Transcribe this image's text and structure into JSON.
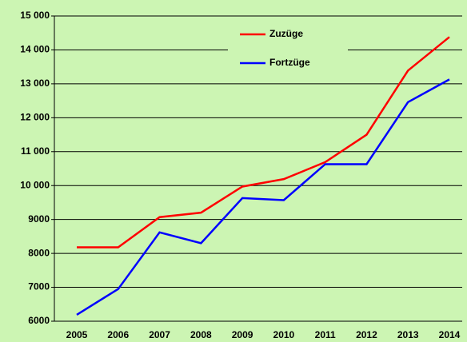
{
  "chart_data": {
    "type": "line",
    "x": [
      "2005",
      "2006",
      "2007",
      "2008",
      "2009",
      "2010",
      "2011",
      "2012",
      "2013",
      "2014"
    ],
    "series": [
      {
        "name": "Zuzüge",
        "color": "#ff0000",
        "values": [
          8180,
          8180,
          9070,
          9200,
          9970,
          10190,
          10690,
          11500,
          13390,
          14380
        ]
      },
      {
        "name": "Fortzüge",
        "color": "#0000ff",
        "values": [
          6190,
          6950,
          8620,
          8300,
          9630,
          9570,
          10630,
          10630,
          12460,
          13130
        ]
      }
    ],
    "ylim": [
      6000,
      15000
    ],
    "yticks": [
      {
        "value": 6000,
        "label": "6000"
      },
      {
        "value": 7000,
        "label": "7000"
      },
      {
        "value": 8000,
        "label": "8000"
      },
      {
        "value": 9000,
        "label": "9000"
      },
      {
        "value": 10000,
        "label": "10 000"
      },
      {
        "value": 11000,
        "label": "11 000"
      },
      {
        "value": 12000,
        "label": "12 000"
      },
      {
        "value": 13000,
        "label": "13 000"
      },
      {
        "value": 14000,
        "label": "14 000"
      },
      {
        "value": 15000,
        "label": "15 000"
      }
    ],
    "grid": true,
    "legend": "top"
  }
}
